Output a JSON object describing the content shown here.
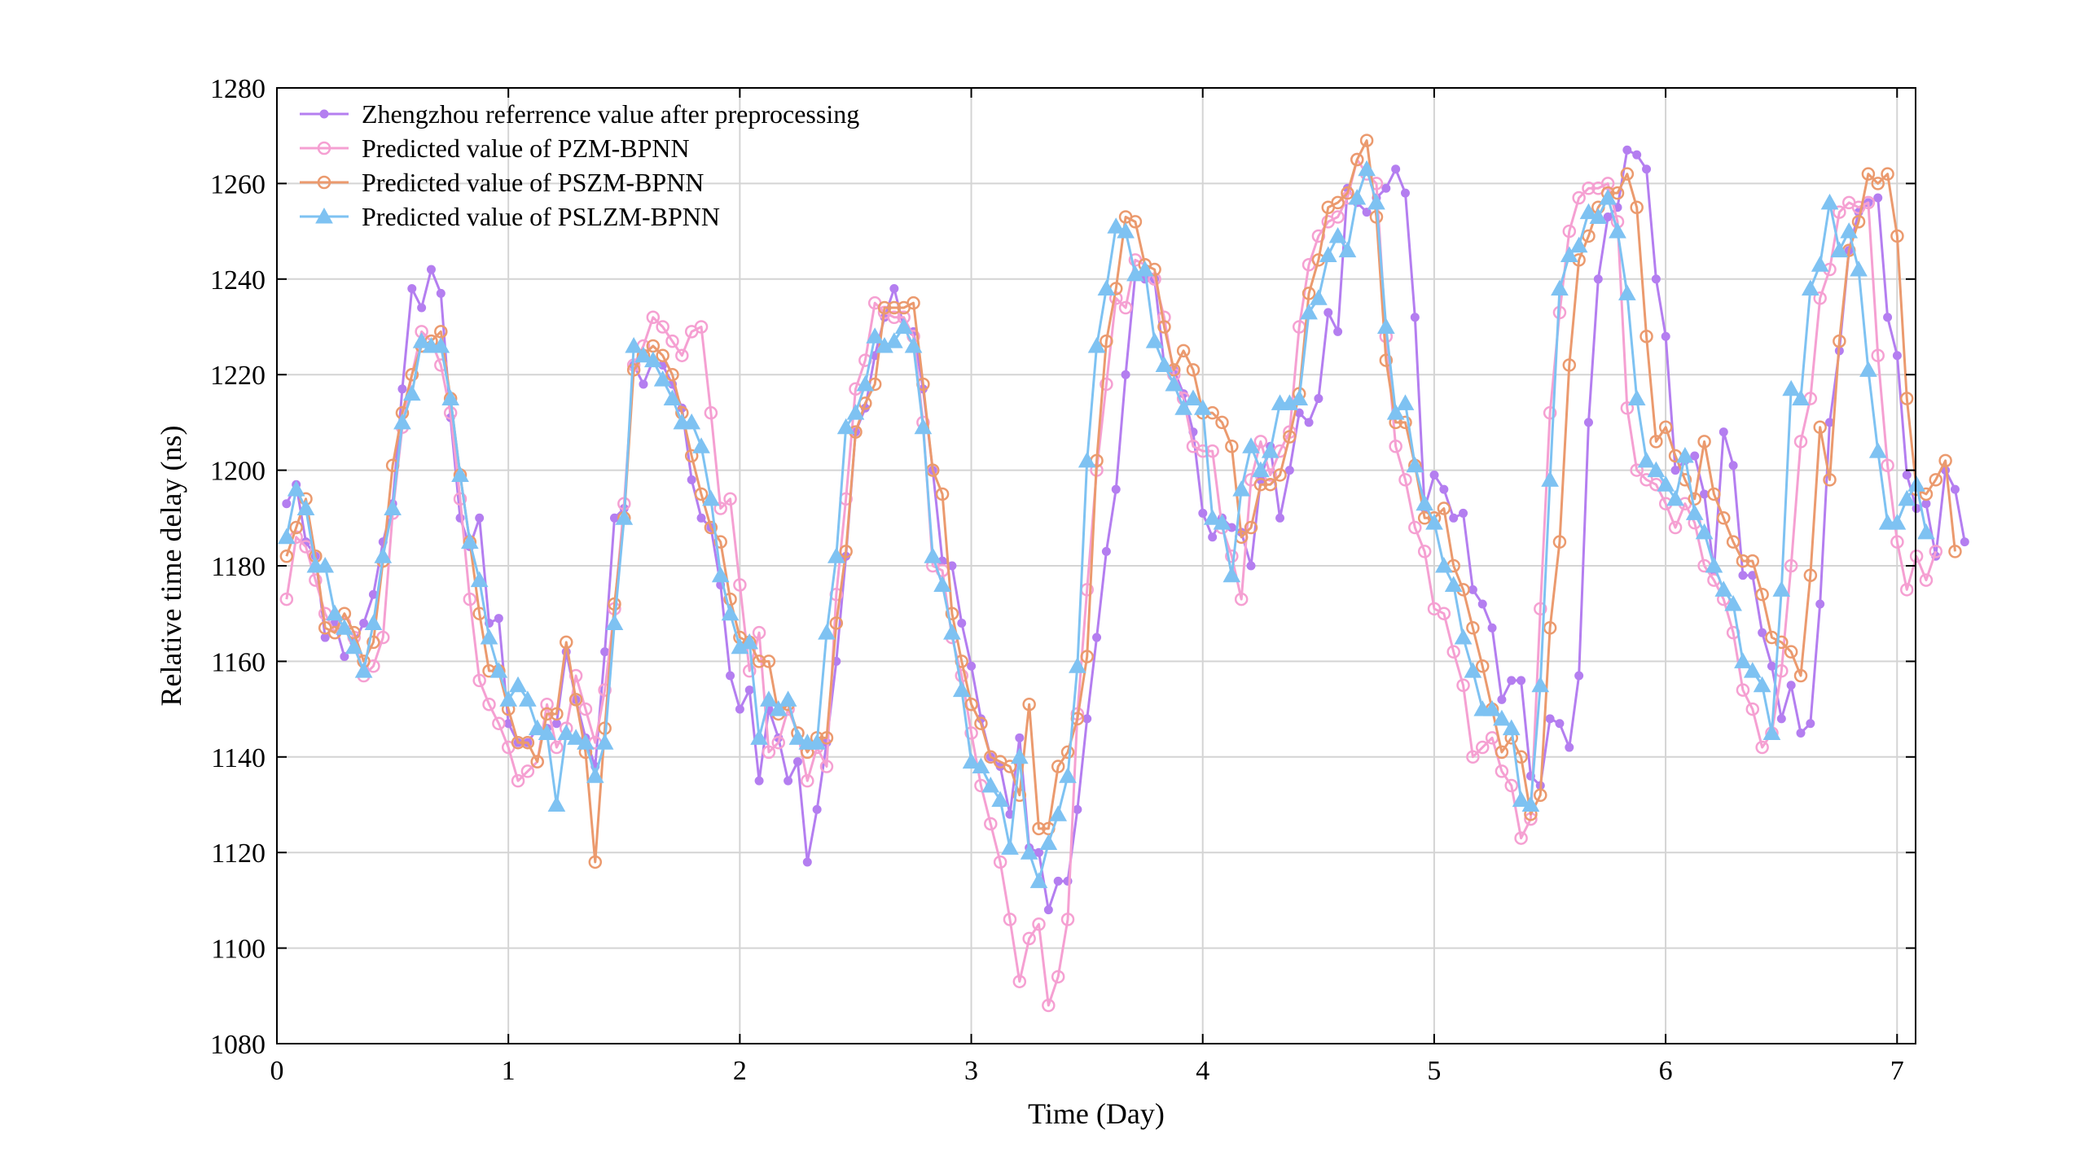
{
  "chart_data": {
    "type": "line",
    "xlabel": "Time (Day)",
    "ylabel": "Relative time delay (ns)",
    "xlim": [
      0,
      7.08
    ],
    "ylim": [
      1080,
      1280
    ],
    "xticks": [
      0,
      1,
      2,
      3,
      4,
      5,
      6,
      7
    ],
    "yticks": [
      1080,
      1100,
      1120,
      1140,
      1160,
      1180,
      1200,
      1220,
      1240,
      1260,
      1280
    ],
    "grid": true,
    "legend_position": "top-left",
    "x_step": 0.04167,
    "series": [
      {
        "name": "Zhengzhou referrence value after preprocessing",
        "color": "#b47ef0",
        "marker": "dot",
        "values": [
          1193,
          1197,
          1185,
          1182,
          1165,
          1168,
          1161,
          1164,
          1168,
          1174,
          1185,
          1193,
          1217,
          1238,
          1234,
          1242,
          1237,
          1211,
          1190,
          1184,
          1190,
          1168,
          1169,
          1147,
          1143,
          1143,
          1146,
          1146,
          1147,
          1162,
          1152,
          1144,
          1138,
          1162,
          1190,
          1192,
          1222,
          1218,
          1223,
          1222,
          1218,
          1213,
          1198,
          1190,
          1188,
          1176,
          1157,
          1150,
          1154,
          1135,
          1150,
          1144,
          1135,
          1139,
          1118,
          1129,
          1143,
          1160,
          1182,
          1208,
          1213,
          1224,
          1232,
          1238,
          1230,
          1229,
          1217,
          1200,
          1181,
          1180,
          1168,
          1159,
          1148,
          1140,
          1138,
          1128,
          1144,
          1121,
          1120,
          1108,
          1114,
          1114,
          1129,
          1148,
          1165,
          1183,
          1196,
          1220,
          1241,
          1240,
          1240,
          1222,
          1221,
          1216,
          1208,
          1191,
          1186,
          1190,
          1188,
          1187,
          1180,
          1198,
          1205,
          1190,
          1200,
          1212,
          1210,
          1215,
          1233,
          1229,
          1259,
          1256,
          1254,
          1257,
          1259,
          1263,
          1258,
          1232,
          1192,
          1199,
          1196,
          1190,
          1191,
          1175,
          1172,
          1167,
          1152,
          1156,
          1156,
          1136,
          1134,
          1148,
          1147,
          1142,
          1157,
          1210,
          1240,
          1253,
          1255,
          1267,
          1266,
          1263,
          1240,
          1228,
          1200,
          1202,
          1203,
          1195,
          1179,
          1208,
          1201,
          1178,
          1178,
          1166,
          1159,
          1148,
          1155,
          1145,
          1147,
          1172,
          1210,
          1225,
          1246,
          1254,
          1256,
          1257,
          1232,
          1224,
          1199,
          1192,
          1193,
          1182,
          1200,
          1196,
          1185
        ]
      },
      {
        "name": "Predicted value of PZM-BPNN",
        "color": "#f5a0d2",
        "marker": "circle",
        "values": [
          1173,
          1186,
          1184,
          1177,
          1170,
          1166,
          1168,
          1165,
          1157,
          1159,
          1165,
          1191,
          1209,
          1220,
          1229,
          1227,
          1222,
          1212,
          1194,
          1173,
          1156,
          1151,
          1147,
          1142,
          1135,
          1137,
          1139,
          1151,
          1142,
          1146,
          1157,
          1150,
          1143,
          1154,
          1171,
          1193,
          1222,
          1226,
          1232,
          1230,
          1227,
          1224,
          1229,
          1230,
          1212,
          1192,
          1194,
          1176,
          1158,
          1166,
          1141,
          1143,
          1150,
          1145,
          1135,
          1142,
          1138,
          1174,
          1194,
          1217,
          1223,
          1235,
          1233,
          1232,
          1232,
          1228,
          1210,
          1180,
          1179,
          1165,
          1157,
          1145,
          1134,
          1126,
          1118,
          1106,
          1093,
          1102,
          1105,
          1088,
          1094,
          1106,
          1149,
          1175,
          1200,
          1218,
          1236,
          1234,
          1244,
          1243,
          1240,
          1232,
          1220,
          1215,
          1205,
          1204,
          1204,
          1188,
          1182,
          1173,
          1198,
          1206,
          1199,
          1204,
          1208,
          1230,
          1243,
          1249,
          1252,
          1253,
          1257,
          1265,
          1262,
          1260,
          1228,
          1205,
          1198,
          1188,
          1183,
          1171,
          1170,
          1162,
          1155,
          1140,
          1142,
          1144,
          1137,
          1134,
          1123,
          1127,
          1171,
          1212,
          1233,
          1250,
          1257,
          1259,
          1259,
          1260,
          1252,
          1213,
          1200,
          1198,
          1197,
          1193,
          1188,
          1193,
          1189,
          1180,
          1177,
          1173,
          1166,
          1154,
          1150,
          1142,
          1145,
          1158,
          1180,
          1206,
          1215,
          1236,
          1242,
          1254,
          1256,
          1255,
          1256,
          1224,
          1201,
          1185,
          1175,
          1182,
          1177,
          1183
        ]
      },
      {
        "name": "Predicted value of PSZM-BPNN",
        "color": "#eb9a6e",
        "marker": "circle",
        "values": [
          1182,
          1188,
          1194,
          1182,
          1167,
          1166,
          1170,
          1166,
          1160,
          1164,
          1181,
          1201,
          1212,
          1220,
          1226,
          1227,
          1229,
          1215,
          1199,
          1185,
          1170,
          1158,
          1158,
          1150,
          1143,
          1143,
          1139,
          1149,
          1149,
          1164,
          1152,
          1141,
          1118,
          1146,
          1172,
          1190,
          1221,
          1224,
          1226,
          1224,
          1220,
          1212,
          1203,
          1195,
          1188,
          1185,
          1173,
          1165,
          1164,
          1160,
          1160,
          1149,
          1151,
          1145,
          1141,
          1144,
          1144,
          1168,
          1183,
          1208,
          1214,
          1218,
          1234,
          1234,
          1234,
          1235,
          1218,
          1200,
          1195,
          1170,
          1160,
          1151,
          1147,
          1140,
          1139,
          1138,
          1132,
          1151,
          1125,
          1125,
          1138,
          1141,
          1148,
          1161,
          1202,
          1227,
          1238,
          1253,
          1252,
          1243,
          1242,
          1230,
          1221,
          1225,
          1221,
          1212,
          1212,
          1210,
          1205,
          1186,
          1188,
          1197,
          1197,
          1199,
          1207,
          1216,
          1237,
          1244,
          1255,
          1256,
          1258,
          1265,
          1269,
          1253,
          1223,
          1210,
          1210,
          1201,
          1190,
          1190,
          1192,
          1180,
          1175,
          1167,
          1159,
          1150,
          1141,
          1144,
          1140,
          1128,
          1132,
          1167,
          1185,
          1222,
          1244,
          1249,
          1255,
          1258,
          1258,
          1262,
          1255,
          1228,
          1206,
          1209,
          1203,
          1198,
          1194,
          1206,
          1195,
          1190,
          1185,
          1181,
          1181,
          1174,
          1165,
          1164,
          1162,
          1157,
          1178,
          1209,
          1198,
          1227,
          1246,
          1252,
          1262,
          1260,
          1262,
          1249,
          1215,
          1196,
          1195,
          1198,
          1202,
          1183
        ]
      },
      {
        "name": "Predicted value of PSLZM-BPNN",
        "color": "#7ec2f2",
        "marker": "triangle",
        "values": [
          1186,
          1196,
          1192,
          1180,
          1180,
          1170,
          1167,
          1163,
          1158,
          1168,
          1182,
          1192,
          1210,
          1216,
          1227,
          1226,
          1226,
          1215,
          1199,
          1185,
          1177,
          1165,
          1158,
          1152,
          1155,
          1152,
          1146,
          1145,
          1130,
          1145,
          1144,
          1143,
          1136,
          1143,
          1168,
          1190,
          1226,
          1224,
          1223,
          1219,
          1215,
          1210,
          1210,
          1205,
          1194,
          1178,
          1170,
          1163,
          1164,
          1144,
          1152,
          1150,
          1152,
          1144,
          1143,
          1143,
          1166,
          1182,
          1209,
          1212,
          1218,
          1228,
          1226,
          1227,
          1230,
          1226,
          1209,
          1182,
          1176,
          1166,
          1154,
          1139,
          1138,
          1134,
          1131,
          1121,
          1140,
          1120,
          1114,
          1122,
          1128,
          1136,
          1159,
          1202,
          1226,
          1238,
          1251,
          1250,
          1241,
          1242,
          1227,
          1222,
          1218,
          1213,
          1215,
          1213,
          1190,
          1189,
          1178,
          1196,
          1205,
          1200,
          1204,
          1214,
          1214,
          1215,
          1233,
          1236,
          1245,
          1249,
          1246,
          1257,
          1263,
          1256,
          1230,
          1212,
          1214,
          1201,
          1193,
          1189,
          1180,
          1176,
          1165,
          1158,
          1150,
          1150,
          1148,
          1146,
          1131,
          1130,
          1155,
          1198,
          1238,
          1245,
          1247,
          1254,
          1253,
          1257,
          1250,
          1237,
          1215,
          1202,
          1200,
          1197,
          1194,
          1203,
          1191,
          1187,
          1180,
          1175,
          1172,
          1160,
          1158,
          1155,
          1145,
          1175,
          1217,
          1215,
          1238,
          1243,
          1256,
          1246,
          1250,
          1242,
          1221,
          1204,
          1189,
          1189,
          1194,
          1197,
          1187
        ]
      }
    ]
  }
}
